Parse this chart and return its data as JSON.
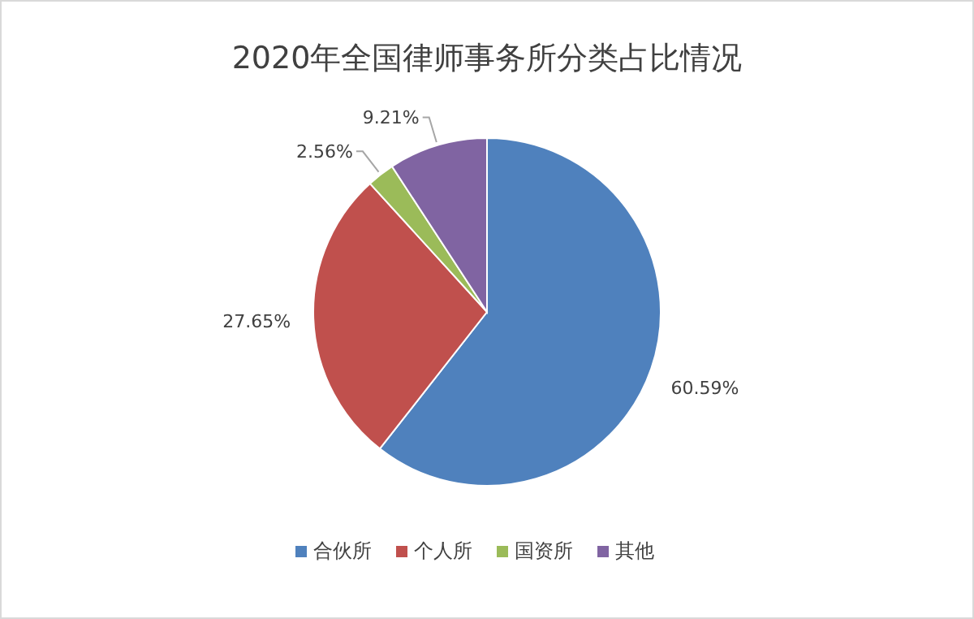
{
  "chart_data": {
    "type": "pie",
    "title": "2020年全国律师事务所分类占比情况",
    "categories": [
      "合伙所",
      "个人所",
      "国资所",
      "其他"
    ],
    "values": [
      60.59,
      27.65,
      2.56,
      9.21
    ],
    "value_labels": [
      "60.59%",
      "27.65%",
      "2.56%",
      "9.21%"
    ],
    "colors": [
      "#4f81bd",
      "#c0504d",
      "#9bbb59",
      "#8064a2"
    ],
    "legend": "bottom"
  }
}
